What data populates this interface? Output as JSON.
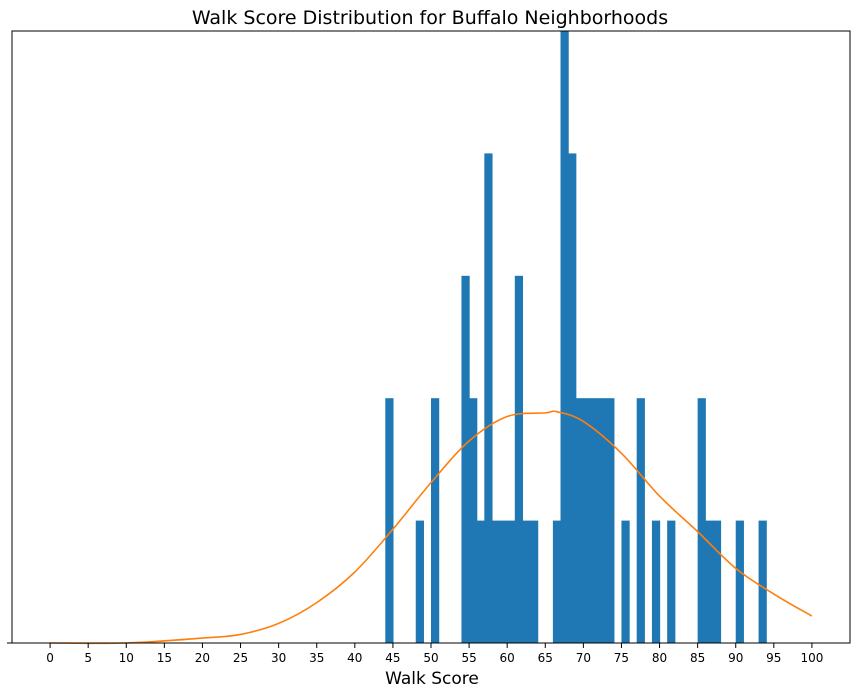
{
  "chart_data": {
    "type": "bar",
    "title": "Walk Score Distribution for Buffalo Neighborhoods",
    "xlabel": "Walk Score",
    "ylabel": "",
    "xlim": [
      -5,
      105
    ],
    "ylim": [
      0,
      5
    ],
    "x_ticks": [
      "0",
      "5",
      "10",
      "15",
      "20",
      "25",
      "30",
      "35",
      "40",
      "45",
      "50",
      "55",
      "60",
      "65",
      "70",
      "75",
      "80",
      "85",
      "90",
      "95",
      "100"
    ],
    "y_ticks": [
      "0"
    ],
    "grid": false,
    "bin_width": 1,
    "series": [
      {
        "kind": "histogram",
        "color": "#1f77b4",
        "bins": [
          {
            "x": 44,
            "count": 2
          },
          {
            "x": 48,
            "count": 1
          },
          {
            "x": 50,
            "count": 2
          },
          {
            "x": 54,
            "count": 3
          },
          {
            "x": 55,
            "count": 2
          },
          {
            "x": 56,
            "count": 1
          },
          {
            "x": 57,
            "count": 4
          },
          {
            "x": 58,
            "count": 1
          },
          {
            "x": 59,
            "count": 1
          },
          {
            "x": 60,
            "count": 1
          },
          {
            "x": 61,
            "count": 3
          },
          {
            "x": 62,
            "count": 1
          },
          {
            "x": 63,
            "count": 1
          },
          {
            "x": 66,
            "count": 1
          },
          {
            "x": 67,
            "count": 5
          },
          {
            "x": 68,
            "count": 4
          },
          {
            "x": 69,
            "count": 2
          },
          {
            "x": 70,
            "count": 2
          },
          {
            "x": 71,
            "count": 2
          },
          {
            "x": 72,
            "count": 2
          },
          {
            "x": 73,
            "count": 2
          },
          {
            "x": 75,
            "count": 1
          },
          {
            "x": 77,
            "count": 2
          },
          {
            "x": 79,
            "count": 1
          },
          {
            "x": 81,
            "count": 1
          },
          {
            "x": 85,
            "count": 2
          },
          {
            "x": 86,
            "count": 1
          },
          {
            "x": 87,
            "count": 1
          },
          {
            "x": 90,
            "count": 1
          },
          {
            "x": 93,
            "count": 1
          }
        ]
      },
      {
        "kind": "line",
        "color": "#ff7f0e",
        "peak_count": 1.88,
        "points": [
          {
            "x": 0,
            "y": 0.0
          },
          {
            "x": 10,
            "y": 0.0
          },
          {
            "x": 20,
            "y": 0.04
          },
          {
            "x": 25,
            "y": 0.07
          },
          {
            "x": 30,
            "y": 0.16
          },
          {
            "x": 35,
            "y": 0.33
          },
          {
            "x": 40,
            "y": 0.58
          },
          {
            "x": 45,
            "y": 0.93
          },
          {
            "x": 50,
            "y": 1.31
          },
          {
            "x": 55,
            "y": 1.65
          },
          {
            "x": 60,
            "y": 1.85
          },
          {
            "x": 65,
            "y": 1.88
          },
          {
            "x": 66.5,
            "y": 1.89
          },
          {
            "x": 70,
            "y": 1.81
          },
          {
            "x": 75,
            "y": 1.55
          },
          {
            "x": 80,
            "y": 1.2
          },
          {
            "x": 85,
            "y": 0.91
          },
          {
            "x": 90,
            "y": 0.61
          },
          {
            "x": 95,
            "y": 0.4
          },
          {
            "x": 100,
            "y": 0.22
          }
        ]
      }
    ]
  }
}
